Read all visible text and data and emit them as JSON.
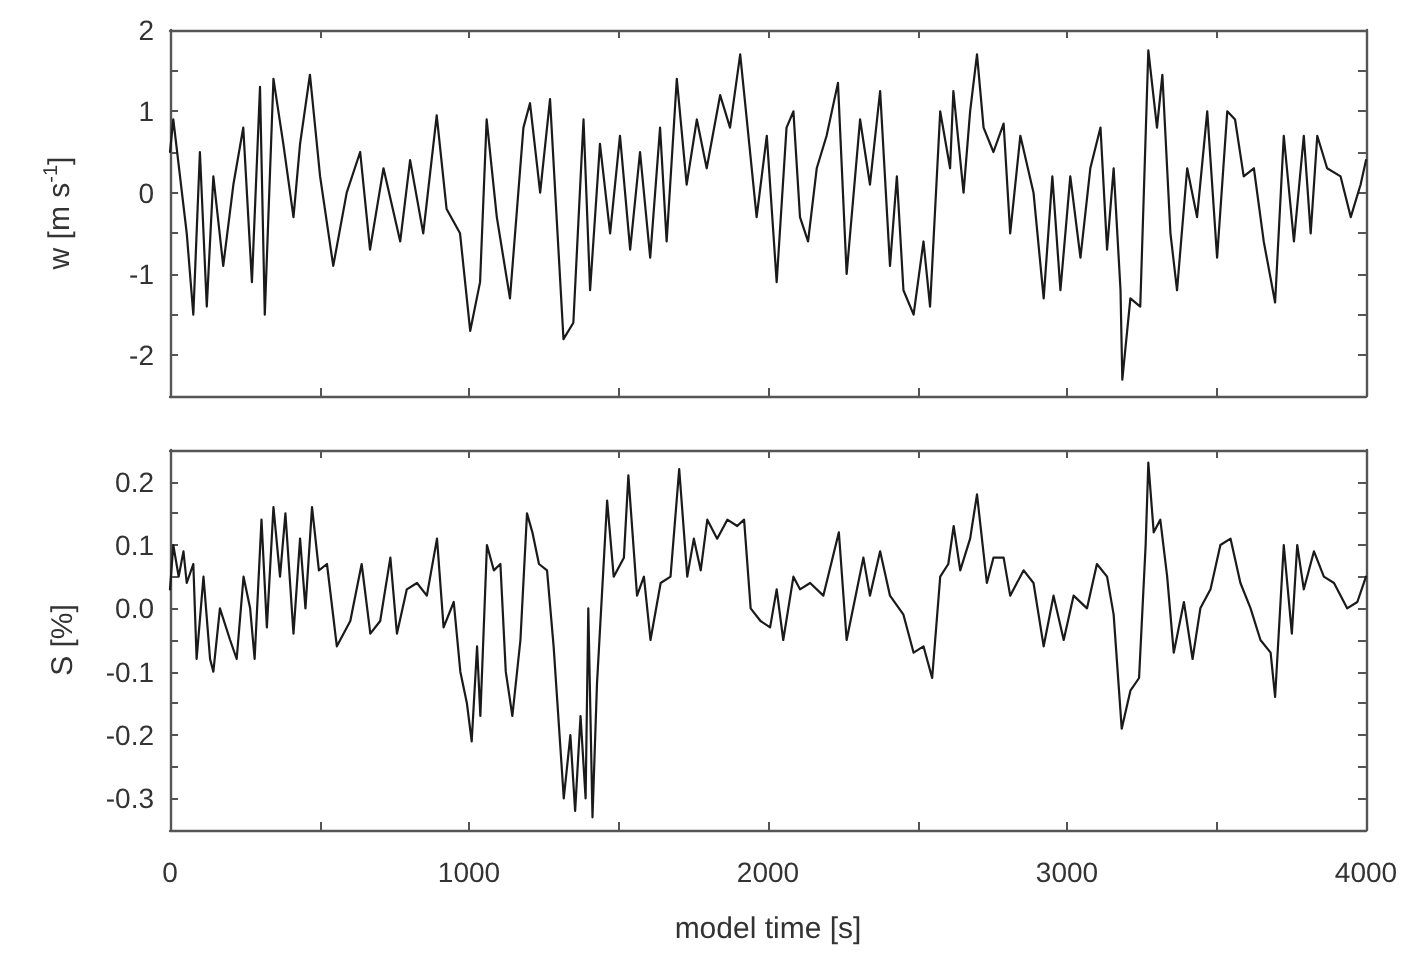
{
  "chart_data": [
    {
      "type": "line",
      "ylabel": "w [m s$^{-1}$]",
      "xlim": [
        0,
        4000
      ],
      "xticks": [
        0,
        {
          "value": 500,
          "label": null
        },
        1000,
        {
          "value": 1500,
          "label": null
        },
        2000,
        {
          "value": 2500,
          "label": null
        },
        3000,
        {
          "value": 3500,
          "label": null
        },
        4000
      ],
      "ylim": [
        -2.5,
        2
      ],
      "yticks": [
        {
          "value": -2.5,
          "label": null
        },
        -2,
        {
          "value": -1.5,
          "label": null
        },
        -1,
        {
          "value": -0.5,
          "label": null
        },
        0,
        {
          "value": 0.5,
          "label": null
        },
        1,
        {
          "value": 1.5,
          "label": null
        },
        2
      ],
      "tick_labels": "y",
      "marker": "none",
      "line_style": "solid",
      "x": [
        0,
        11,
        56,
        78,
        100,
        123,
        145,
        178,
        212,
        245,
        274,
        301,
        317,
        346,
        379,
        413,
        435,
        468,
        502,
        546,
        591,
        636,
        669,
        714,
        770,
        803,
        847,
        892,
        925,
        970,
        1004,
        1037,
        1059,
        1093,
        1137,
        1182,
        1204,
        1238,
        1271,
        1293,
        1316,
        1349,
        1383,
        1405,
        1438,
        1472,
        1505,
        1539,
        1572,
        1606,
        1639,
        1661,
        1695,
        1728,
        1762,
        1795,
        1840,
        1873,
        1907,
        1929,
        1962,
        1996,
        2029,
        2062,
        2085,
        2107,
        2134,
        2163,
        2196,
        2234,
        2263,
        2308,
        2341,
        2375,
        2408,
        2431,
        2453,
        2487,
        2520,
        2542,
        2576,
        2609,
        2620,
        2654,
        2676,
        2699,
        2721,
        2754,
        2788,
        2810,
        2844,
        2888,
        2922,
        2951,
        2978,
        3011,
        3045,
        3078,
        3112,
        3134,
        3156,
        3179,
        3185,
        3212,
        3245,
        3272,
        3301,
        3319,
        3346,
        3368,
        3402,
        3435,
        3469,
        3502,
        3536,
        3562,
        3591,
        3625,
        3658,
        3696,
        3725,
        3759,
        3792,
        3815,
        3837,
        3870,
        3915,
        3949,
        3982,
        4000
      ],
      "series": [
        {
          "color": "#1a1a1a",
          "values": [
            0.5,
            0.9,
            -0.5,
            -1.5,
            0.5,
            -1.4,
            0.2,
            -0.9,
            0.1,
            0.8,
            -1.1,
            1.3,
            -1.5,
            1.4,
            0.6,
            -0.3,
            0.6,
            1.45,
            0.2,
            -0.9,
            0.0,
            0.5,
            -0.7,
            0.3,
            -0.6,
            0.4,
            -0.5,
            0.95,
            -0.2,
            -0.5,
            -1.7,
            -1.1,
            0.9,
            -0.3,
            -1.3,
            0.8,
            1.1,
            0.0,
            1.15,
            -0.3,
            -1.8,
            -1.6,
            0.9,
            -1.2,
            0.6,
            -0.5,
            0.7,
            -0.7,
            0.5,
            -0.8,
            0.8,
            -0.6,
            1.4,
            0.1,
            0.9,
            0.3,
            1.2,
            0.8,
            1.7,
            0.9,
            -0.3,
            0.7,
            -1.1,
            0.8,
            1.0,
            -0.3,
            -0.6,
            0.3,
            0.7,
            1.35,
            -1.0,
            0.9,
            0.1,
            1.25,
            -0.9,
            0.2,
            -1.2,
            -1.5,
            -0.6,
            -1.4,
            1.0,
            0.3,
            1.25,
            0.0,
            1.0,
            1.7,
            0.8,
            0.5,
            0.85,
            -0.5,
            0.7,
            0.0,
            -1.3,
            0.2,
            -1.2,
            0.2,
            -0.8,
            0.3,
            0.8,
            -0.7,
            0.3,
            -1.2,
            -2.3,
            -1.3,
            -1.4,
            1.75,
            0.8,
            1.45,
            -0.5,
            -1.2,
            0.3,
            -0.3,
            1.0,
            -0.8,
            1.0,
            0.9,
            0.2,
            0.3,
            -0.6,
            -1.35,
            0.7,
            -0.6,
            0.7,
            -0.5,
            0.7,
            0.3,
            0.2,
            -0.3,
            0.1,
            0.4
          ]
        }
      ]
    },
    {
      "type": "line",
      "ylabel": "S [%]",
      "xlabel": "model time [s]",
      "xlim": [
        0,
        4000
      ],
      "xticks": [
        0,
        {
          "value": 500,
          "label": null
        },
        1000,
        {
          "value": 1500,
          "label": null
        },
        2000,
        {
          "value": 2500,
          "label": null
        },
        3000,
        {
          "value": 3500,
          "label": null
        },
        4000
      ],
      "ylim": [
        -0.35,
        0.25
      ],
      "yticks": [
        {
          "value": -0.35,
          "label": null
        },
        -0.3,
        {
          "value": -0.25,
          "label": null
        },
        -0.2,
        {
          "value": -0.15,
          "label": null
        },
        -0.1,
        {
          "value": -0.05,
          "label": null
        },
        {
          "value": 0,
          "label": "0.0"
        },
        {
          "value": 0.05,
          "label": null
        },
        0.1,
        {
          "value": 0.15,
          "label": null
        },
        0.2,
        {
          "value": 0.25,
          "label": null
        }
      ],
      "marker": "none",
      "line_style": "solid",
      "x": [
        0,
        11,
        29,
        45,
        56,
        78,
        89,
        112,
        134,
        145,
        167,
        201,
        223,
        246,
        268,
        283,
        306,
        324,
        346,
        368,
        386,
        413,
        435,
        453,
        475,
        498,
        525,
        558,
        603,
        641,
        670,
        703,
        737,
        759,
        792,
        826,
        859,
        893,
        915,
        949,
        971,
        993,
        1009,
        1027,
        1038,
        1060,
        1083,
        1105,
        1123,
        1145,
        1172,
        1194,
        1212,
        1234,
        1261,
        1283,
        1317,
        1339,
        1355,
        1373,
        1390,
        1399,
        1413,
        1428,
        1462,
        1484,
        1518,
        1533,
        1562,
        1585,
        1607,
        1641,
        1674,
        1703,
        1730,
        1752,
        1775,
        1797,
        1830,
        1864,
        1897,
        1920,
        1942,
        1975,
        2007,
        2029,
        2051,
        2085,
        2107,
        2141,
        2185,
        2237,
        2263,
        2319,
        2341,
        2375,
        2408,
        2453,
        2487,
        2520,
        2549,
        2576,
        2603,
        2621,
        2643,
        2676,
        2699,
        2732,
        2754,
        2788,
        2810,
        2855,
        2888,
        2922,
        2955,
        2989,
        3022,
        3067,
        3100,
        3134,
        3156,
        3183,
        3212,
        3241,
        3263,
        3272,
        3290,
        3312,
        3335,
        3357,
        3391,
        3420,
        3446,
        3480,
        3513,
        3547,
        3580,
        3614,
        3647,
        3681,
        3696,
        3725,
        3752,
        3770,
        3792,
        3826,
        3859,
        3893,
        3937,
        3971,
        4000
      ],
      "series": [
        {
          "color": "#1a1a1a",
          "values": [
            0.03,
            0.1,
            0.05,
            0.09,
            0.04,
            0.07,
            -0.08,
            0.05,
            -0.08,
            -0.1,
            0.0,
            -0.05,
            -0.08,
            0.05,
            0.0,
            -0.08,
            0.14,
            -0.03,
            0.16,
            0.05,
            0.15,
            -0.04,
            0.11,
            0.0,
            0.16,
            0.06,
            0.07,
            -0.06,
            -0.02,
            0.07,
            -0.04,
            -0.02,
            0.08,
            -0.04,
            0.03,
            0.04,
            0.02,
            0.11,
            -0.03,
            0.01,
            -0.1,
            -0.15,
            -0.21,
            -0.06,
            -0.17,
            0.1,
            0.06,
            0.07,
            -0.1,
            -0.17,
            -0.05,
            0.15,
            0.12,
            0.07,
            0.06,
            -0.06,
            -0.3,
            -0.2,
            -0.32,
            -0.17,
            -0.3,
            0.0,
            -0.33,
            -0.12,
            0.17,
            0.05,
            0.08,
            0.21,
            0.02,
            0.05,
            -0.05,
            0.04,
            0.05,
            0.22,
            0.05,
            0.11,
            0.06,
            0.14,
            0.11,
            0.14,
            0.13,
            0.14,
            0.0,
            -0.02,
            -0.03,
            0.03,
            -0.05,
            0.05,
            0.03,
            0.04,
            0.02,
            0.12,
            -0.05,
            0.08,
            0.02,
            0.09,
            0.02,
            -0.01,
            -0.07,
            -0.06,
            -0.11,
            0.05,
            0.07,
            0.13,
            0.06,
            0.11,
            0.18,
            0.04,
            0.08,
            0.08,
            0.02,
            0.06,
            0.04,
            -0.06,
            0.02,
            -0.05,
            0.02,
            0.0,
            0.07,
            0.05,
            -0.01,
            -0.19,
            -0.13,
            -0.11,
            0.1,
            0.23,
            0.12,
            0.14,
            0.05,
            -0.07,
            0.01,
            -0.08,
            0.0,
            0.03,
            0.1,
            0.11,
            0.04,
            0.0,
            -0.05,
            -0.07,
            -0.14,
            0.1,
            -0.04,
            0.1,
            0.03,
            0.09,
            0.05,
            0.04,
            0.0,
            0.01,
            0.05
          ]
        }
      ]
    }
  ]
}
